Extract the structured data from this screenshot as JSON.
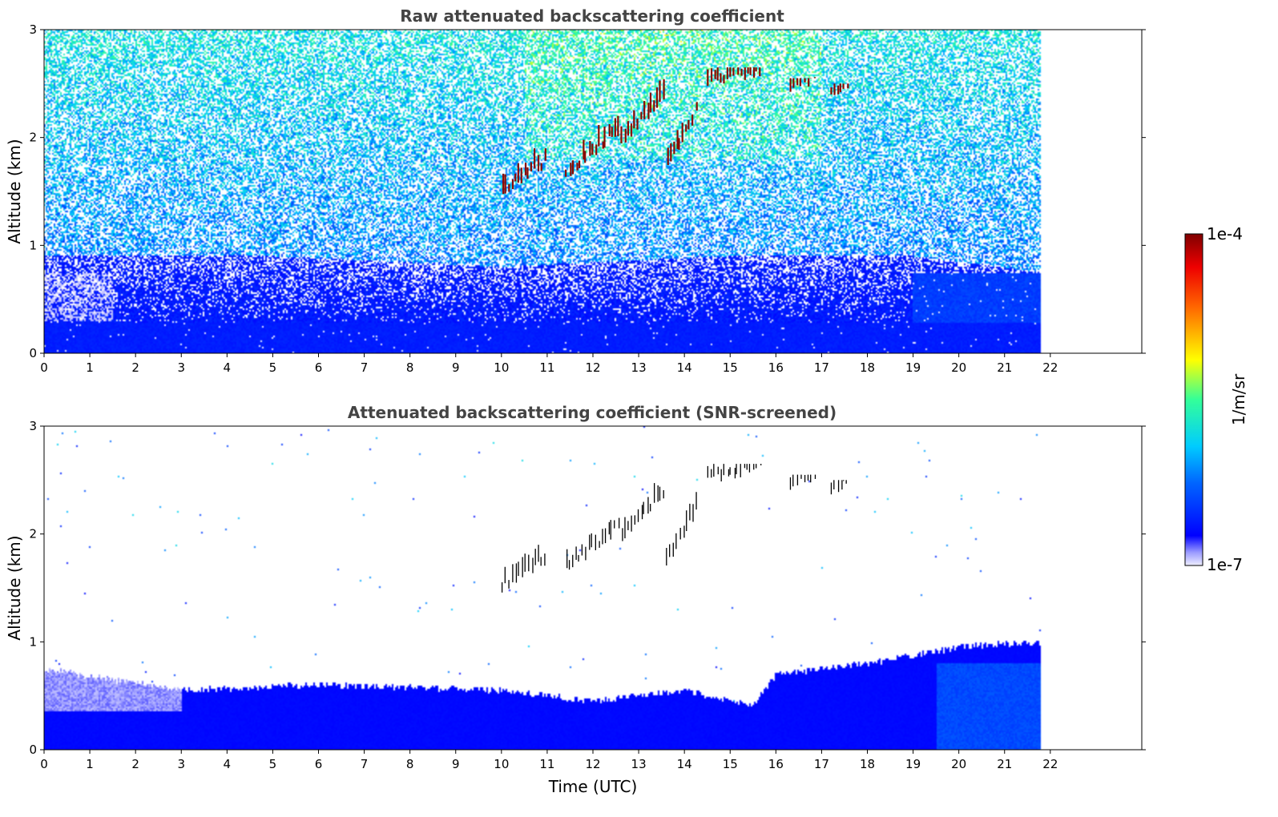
{
  "chart_data": [
    {
      "type": "heatmap",
      "title": "Raw attenuated backscattering coefficient",
      "xlabel": "",
      "ylabel": "Altitude (km)",
      "xlim": [
        0,
        24
      ],
      "ylim": [
        0,
        3
      ],
      "x_ticks": [
        "0",
        "1",
        "2",
        "3",
        "4",
        "5",
        "6",
        "7",
        "8",
        "9",
        "10",
        "11",
        "12",
        "13",
        "14",
        "15",
        "16",
        "17",
        "18",
        "19",
        "20",
        "21",
        "22"
      ],
      "y_ticks": [
        "0",
        "1",
        "2",
        "3"
      ],
      "data_time_range": [
        0,
        21.8
      ],
      "screened": false,
      "features": {
        "boundary_layer_top_km": 0.25,
        "aerosol_layer_top_km": [
          [
            0,
            0.9
          ],
          [
            5,
            0.9
          ],
          [
            10,
            0.8
          ],
          [
            15,
            0.9
          ],
          [
            19,
            0.9
          ],
          [
            21.8,
            0.75
          ]
        ],
        "cloud_segments": [
          {
            "time": [
              10.0,
              11.0
            ],
            "base_km": 1.45,
            "top_km": 1.9
          },
          {
            "time": [
              11.4,
              12.6
            ],
            "base_km": 1.6,
            "top_km": 2.3
          },
          {
            "time": [
              12.6,
              13.6
            ],
            "base_km": 1.9,
            "top_km": 2.6
          },
          {
            "time": [
              13.6,
              14.3
            ],
            "base_km": 1.65,
            "top_km": 2.55
          },
          {
            "time": [
              14.5,
              15.7
            ],
            "base_km": 2.45,
            "top_km": 2.65
          },
          {
            "time": [
              16.3,
              16.9
            ],
            "base_km": 2.4,
            "top_km": 2.55
          },
          {
            "time": [
              17.2,
              17.6
            ],
            "base_km": 2.35,
            "top_km": 2.5
          }
        ]
      }
    },
    {
      "type": "heatmap",
      "title": "Attenuated backscattering coefficient (SNR-screened)",
      "xlabel": "Time (UTC)",
      "ylabel": "Altitude (km)",
      "xlim": [
        0,
        24
      ],
      "ylim": [
        0,
        3
      ],
      "x_ticks": [
        "0",
        "1",
        "2",
        "3",
        "4",
        "5",
        "6",
        "7",
        "8",
        "9",
        "10",
        "11",
        "12",
        "13",
        "14",
        "15",
        "16",
        "17",
        "18",
        "19",
        "20",
        "21",
        "22"
      ],
      "y_ticks": [
        "0",
        "1",
        "2",
        "3"
      ],
      "data_time_range": [
        0,
        21.8
      ],
      "screened": true,
      "features": {
        "aerosol_layer_top_km": [
          [
            0,
            0.75
          ],
          [
            3,
            0.55
          ],
          [
            6,
            0.6
          ],
          [
            10,
            0.55
          ],
          [
            12,
            0.45
          ],
          [
            14,
            0.55
          ],
          [
            15.5,
            0.4
          ],
          [
            16,
            0.7
          ],
          [
            18,
            0.8
          ],
          [
            20,
            0.95
          ],
          [
            21.8,
            1.0
          ]
        ]
      }
    }
  ],
  "colorbar": {
    "label": "1/m/sr",
    "max_label": "1e-4",
    "min_label": "1e-7",
    "colormap": "jet",
    "scale": "log",
    "range": [
      1e-07,
      0.0001
    ]
  }
}
